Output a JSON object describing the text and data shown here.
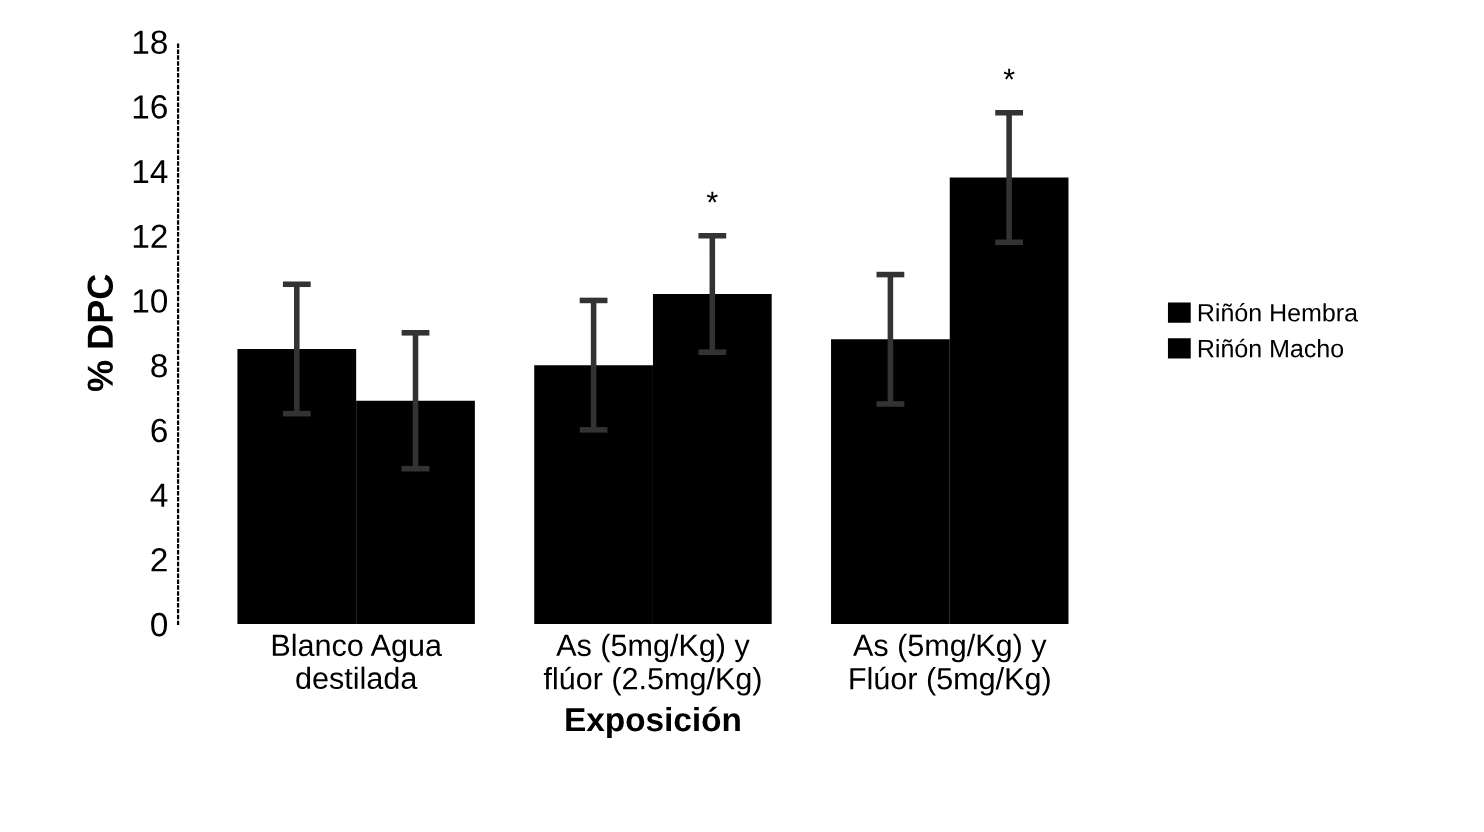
{
  "chart_data": {
    "type": "bar",
    "xlabel": "Exposición",
    "ylabel": "% DPC",
    "categories": [
      "Blanco Agua\ndestilada",
      "As (5mg/Kg) y\nflúor (2.5mg/Kg)",
      "As (5mg/Kg) y\nFlúor (5mg/Kg)"
    ],
    "series": [
      {
        "name": "Riñón Hembra",
        "color": "#000000",
        "values": [
          8.5,
          8.0,
          8.8
        ],
        "errors": [
          2.0,
          2.0,
          2.0
        ]
      },
      {
        "name": "Riñón Macho",
        "color": "#000000",
        "values": [
          6.9,
          10.2,
          13.8
        ],
        "errors": [
          2.1,
          1.8,
          2.0
        ]
      }
    ],
    "ylim": [
      0,
      18
    ],
    "yticks": [
      0,
      2,
      4,
      6,
      8,
      10,
      12,
      14,
      16,
      18
    ],
    "grid": false,
    "legend": "right",
    "annotations": [
      "*",
      "*"
    ]
  }
}
